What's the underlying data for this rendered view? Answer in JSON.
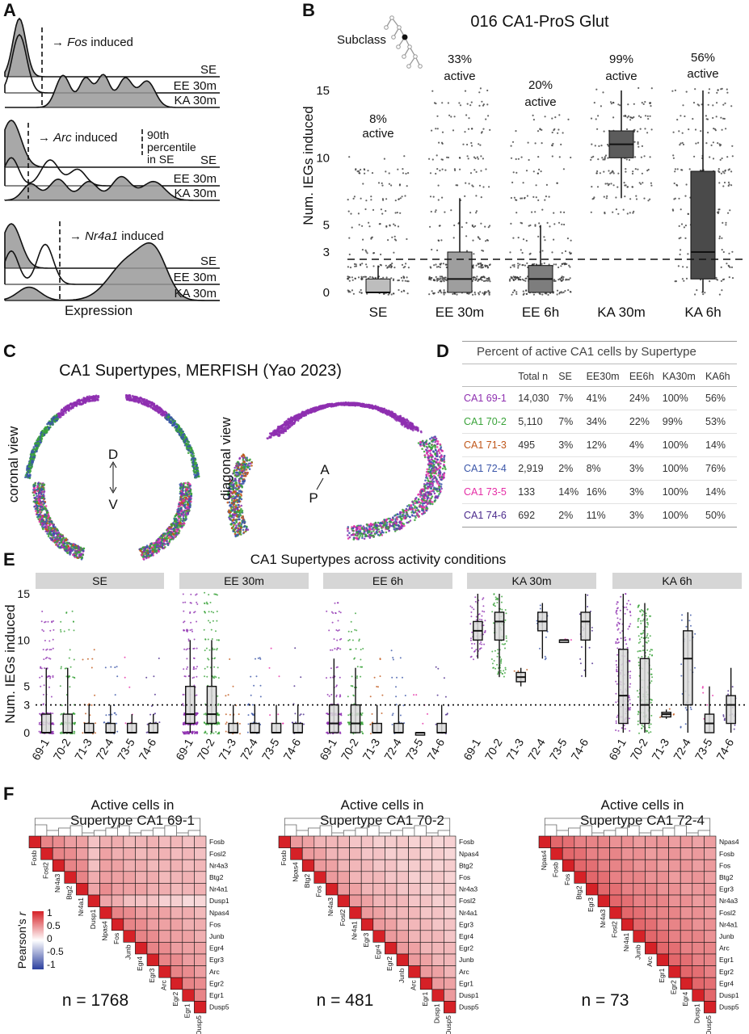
{
  "panels": {
    "A": "A",
    "B": "B",
    "C": "C",
    "D": "D",
    "E": "E",
    "F": "F"
  },
  "panel_a": {
    "groups": [
      {
        "gene": "Fos",
        "suffix": " induced"
      },
      {
        "gene": "Arc",
        "suffix": " induced"
      },
      {
        "gene": "Nr4a1",
        "suffix": " induced"
      }
    ],
    "arrow": "→",
    "conditions": [
      "SE",
      "EE 30m",
      "KA 30m"
    ],
    "percentile_note": [
      "90th",
      "percentile",
      "in SE"
    ],
    "xlabel": "Expression"
  },
  "panel_b": {
    "title": "016 CA1-ProS Glut",
    "hierarchy_label": "Subclass",
    "ylabel": "Num. IEGs induced",
    "yticks": [
      "0",
      "3",
      "5",
      "10",
      "15"
    ],
    "threshold": 3,
    "categories": [
      "SE",
      "EE 30m",
      "EE 6h",
      "KA 30m",
      "KA 6h"
    ],
    "active_pct": [
      "8%",
      "33%",
      "20%",
      "99%",
      "56%"
    ],
    "active_word": "active",
    "box_colors": [
      "#bdbdbd",
      "#9e9e9e",
      "#7d7d7d",
      "#5c5c5c",
      "#4a4a4a"
    ],
    "boxes": [
      {
        "min": 0,
        "q1": 0,
        "median": 0,
        "q3": 1,
        "max": 2
      },
      {
        "min": 0,
        "q1": 0,
        "median": 1,
        "q3": 3,
        "max": 7
      },
      {
        "min": 0,
        "q1": 0,
        "median": 1,
        "q3": 2,
        "max": 5
      },
      {
        "min": 7,
        "q1": 10,
        "median": 11,
        "q3": 12,
        "max": 15
      },
      {
        "min": 0,
        "q1": 1,
        "median": 3,
        "q3": 9,
        "max": 15
      }
    ]
  },
  "panel_c": {
    "title": "CA1 Supertypes, MERFISH (Yao 2023)",
    "left_view": "coronal view",
    "right_view": "diagonal view",
    "axis_left": [
      "D",
      "V"
    ],
    "axis_right": [
      "A",
      "P"
    ]
  },
  "table_d": {
    "title": "Percent of active CA1 cells by Supertype",
    "columns": [
      "",
      "Total n",
      "SE",
      "EE30m",
      "EE6h",
      "KA30m",
      "KA6h"
    ],
    "rows": [
      {
        "name": "CA1 69-1",
        "color": "#8e2fb0",
        "values": [
          "14,030",
          "7%",
          "41%",
          "24%",
          "100%",
          "56%"
        ]
      },
      {
        "name": "CA1 70-2",
        "color": "#3aa33a",
        "values": [
          "5,110",
          "7%",
          "34%",
          "22%",
          "99%",
          "53%"
        ]
      },
      {
        "name": "CA1 71-3",
        "color": "#c0571a",
        "values": [
          "495",
          "3%",
          "12%",
          "4%",
          "100%",
          "14%"
        ]
      },
      {
        "name": "CA1 72-4",
        "color": "#3a55a8",
        "values": [
          "2,919",
          "2%",
          "8%",
          "3%",
          "100%",
          "76%"
        ]
      },
      {
        "name": "CA1 73-5",
        "color": "#e52ea6",
        "values": [
          "133",
          "14%",
          "16%",
          "3%",
          "100%",
          "14%"
        ]
      },
      {
        "name": "CA1 74-6",
        "color": "#4b2a8c",
        "values": [
          "692",
          "2%",
          "11%",
          "3%",
          "100%",
          "50%"
        ]
      }
    ]
  },
  "panel_e": {
    "title": "CA1 Supertypes across activity conditions",
    "ylabel": "Num. IEGs induced",
    "yticks": [
      "0",
      "3",
      "5",
      "10",
      "15"
    ],
    "threshold": 3,
    "facets": [
      "SE",
      "EE 30m",
      "EE 6h",
      "KA 30m",
      "KA 6h"
    ],
    "supertypes": [
      "69-1",
      "70-2",
      "71-3",
      "72-4",
      "73-5",
      "74-6"
    ],
    "colors": [
      "#8e2fb0",
      "#3aa33a",
      "#c0571a",
      "#3a55a8",
      "#e52ea6",
      "#4b2a8c"
    ],
    "boxes": [
      [
        [
          0,
          0,
          0,
          2,
          7
        ],
        [
          0,
          0,
          0,
          2,
          7
        ],
        [
          0,
          0,
          0,
          1,
          3
        ],
        [
          0,
          0,
          0,
          1,
          3
        ],
        [
          0,
          0,
          0,
          1,
          2
        ],
        [
          0,
          0,
          0,
          1,
          2
        ]
      ],
      [
        [
          0,
          1,
          2,
          5,
          10
        ],
        [
          0,
          1,
          2,
          5,
          10
        ],
        [
          0,
          0,
          0,
          1,
          3
        ],
        [
          0,
          0,
          0,
          1,
          3
        ],
        [
          0,
          0,
          0,
          1,
          3
        ],
        [
          0,
          0,
          0,
          1,
          3
        ]
      ],
      [
        [
          0,
          0,
          1,
          3,
          8
        ],
        [
          0,
          0,
          1,
          3,
          7
        ],
        [
          0,
          0,
          0,
          1,
          3
        ],
        [
          0,
          0,
          0,
          1,
          3
        ],
        [
          0,
          0,
          0,
          0,
          0
        ],
        [
          0,
          0,
          0,
          1,
          3
        ]
      ],
      [
        [
          8,
          10,
          11,
          12,
          15
        ],
        [
          6,
          10,
          12,
          13,
          15
        ],
        [
          5,
          5.5,
          6,
          6.5,
          7
        ],
        [
          8,
          11,
          12,
          13,
          14
        ],
        [
          10,
          10,
          10,
          10,
          10
        ],
        [
          6,
          10,
          12,
          13,
          15
        ]
      ],
      [
        [
          0,
          1,
          4,
          9,
          15
        ],
        [
          0,
          1,
          3,
          8,
          14
        ],
        [
          1.5,
          1.7,
          2,
          2.2,
          2.5
        ],
        [
          0,
          3,
          8,
          11,
          13
        ],
        [
          0,
          0,
          1,
          2,
          5
        ],
        [
          0,
          1,
          3,
          4,
          7
        ]
      ]
    ]
  },
  "panel_f": {
    "heatmaps": [
      {
        "title": [
          "Active cells in",
          "Supertype CA1 69-1"
        ],
        "color": "#7a2a96",
        "n": "n = 1768",
        "genes": [
          "Fosb",
          "Fosl2",
          "Nr4a3",
          "Btg2",
          "Nr4a1",
          "Dusp1",
          "Npas4",
          "Fos",
          "Junb",
          "Egr4",
          "Egr3",
          "Arc",
          "Egr2",
          "Egr1",
          "Dusp5"
        ]
      },
      {
        "title": [
          "Active cells in",
          "Supertype CA1 70-2"
        ],
        "color": "#2e8f2e",
        "n": "n = 481",
        "genes": [
          "Fosb",
          "Npas4",
          "Btg2",
          "Fos",
          "Nr4a3",
          "Fosl2",
          "Nr4a1",
          "Egr3",
          "Egr4",
          "Egr2",
          "Junb",
          "Arc",
          "Egr1",
          "Dusp1",
          "Dusp5"
        ]
      },
      {
        "title": [
          "Active cells in",
          "Supertype CA1 72-4"
        ],
        "color": "#2e4a98",
        "n": "n = 73",
        "genes": [
          "Npas4",
          "Fosb",
          "Fos",
          "Btg2",
          "Egr3",
          "Nr4a3",
          "Fosl2",
          "Nr4a1",
          "Junb",
          "Arc",
          "Egr1",
          "Egr2",
          "Egr4",
          "Dusp1",
          "Dusp5"
        ]
      }
    ],
    "colorbar_label": "Pearson's r",
    "colorbar_ticks": [
      "1",
      "0.5",
      "0",
      "-0.5",
      "-1"
    ]
  }
}
